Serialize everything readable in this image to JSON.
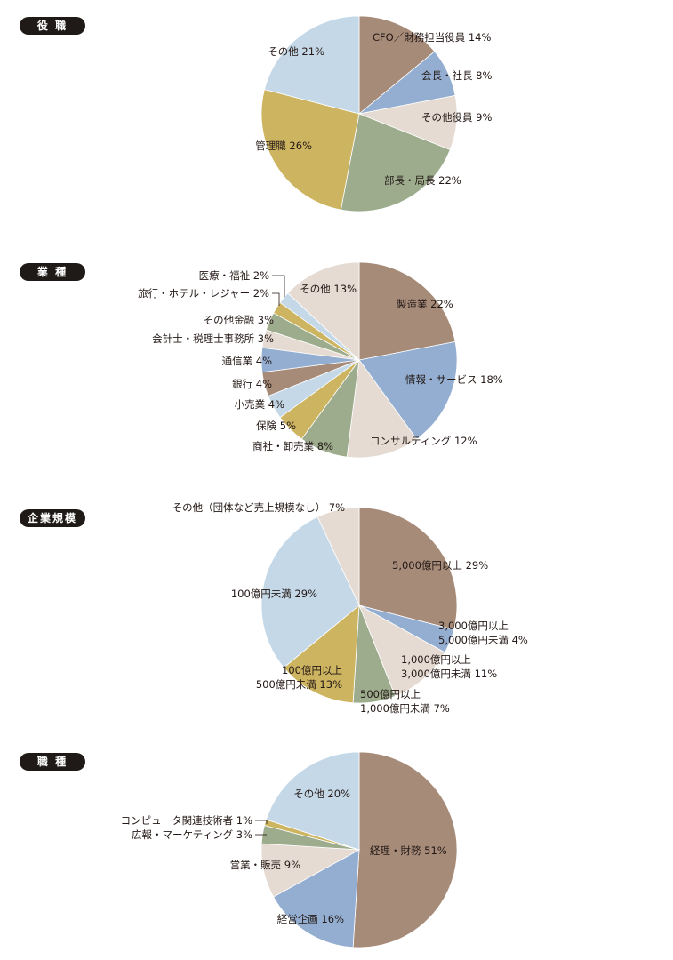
{
  "chart_data": [
    {
      "type": "pie",
      "title": "役 職",
      "slices": [
        {
          "label": "CFO／財務担当役員",
          "value": 14,
          "text": "CFO／財務担当役員 14%",
          "color": "#a68b79"
        },
        {
          "label": "会長・社長",
          "value": 8,
          "text": "会長・社長 8%",
          "color": "#93aed1"
        },
        {
          "label": "その他役員",
          "value": 9,
          "text": "その他役員 9%",
          "color": "#e5dbd3"
        },
        {
          "label": "部長・局長",
          "value": 22,
          "text": "部長・局長 22%",
          "color": "#9cac8d"
        },
        {
          "label": "管理職",
          "value": 26,
          "text": "管理職 26%",
          "color": "#cdb460"
        },
        {
          "label": "その他",
          "value": 21,
          "text": "その他 21%",
          "color": "#c4d8e8"
        }
      ]
    },
    {
      "type": "pie",
      "title": "業 種",
      "slices": [
        {
          "label": "製造業",
          "value": 22,
          "text": "製造業 22%",
          "color": "#a68b79"
        },
        {
          "label": "情報・サービス",
          "value": 18,
          "text": "情報・サービス 18%",
          "color": "#93aed1"
        },
        {
          "label": "コンサルティング",
          "value": 12,
          "text": "コンサルティング 12%",
          "color": "#e5dbd3"
        },
        {
          "label": "商社・卸売業",
          "value": 8,
          "text": "商社・卸売業 8%",
          "color": "#9cac8d"
        },
        {
          "label": "保険",
          "value": 5,
          "text": "保険 5%",
          "color": "#cdb460"
        },
        {
          "label": "小売業",
          "value": 4,
          "text": "小売業 4%",
          "color": "#c4d8e8"
        },
        {
          "label": "銀行",
          "value": 4,
          "text": "銀行 4%",
          "color": "#a68b79"
        },
        {
          "label": "通信業",
          "value": 4,
          "text": "通信業 4%",
          "color": "#93aed1"
        },
        {
          "label": "会計士・税理士事務所",
          "value": 3,
          "text": "会計士・税理士事務所 3%",
          "color": "#e5dbd3"
        },
        {
          "label": "その他金融",
          "value": 3,
          "text": "その他金融 3%",
          "color": "#9cac8d"
        },
        {
          "label": "旅行・ホテル・レジャー",
          "value": 2,
          "text": "旅行・ホテル・レジャー 2%",
          "color": "#cdb460"
        },
        {
          "label": "医療・福祉",
          "value": 2,
          "text": "医療・福祉 2%",
          "color": "#c4d8e8"
        },
        {
          "label": "その他",
          "value": 13,
          "text": "その他 13%",
          "color": "#e5dbd3"
        }
      ]
    },
    {
      "type": "pie",
      "title": "企業規模",
      "slices": [
        {
          "label": "5,000億円以上",
          "value": 29,
          "text": "5,000億円以上 29%",
          "color": "#a68b79"
        },
        {
          "label": "3,000億円以上 5,000億円未満",
          "value": 4,
          "text": "3,000億円以上|5,000億円未満 4%",
          "color": "#93aed1"
        },
        {
          "label": "1,000億円以上 3,000億円未満",
          "value": 11,
          "text": "1,000億円以上|3,000億円未満 11%",
          "color": "#e5dbd3"
        },
        {
          "label": "500億円以上 1,000億円未満",
          "value": 7,
          "text": "500億円以上|1,000億円未満 7%",
          "color": "#9cac8d"
        },
        {
          "label": "100億円以上 500億円未満",
          "value": 13,
          "text": "100億円以上|500億円未満 13%",
          "color": "#cdb460"
        },
        {
          "label": "100億円未満",
          "value": 29,
          "text": "100億円未満 29%",
          "color": "#c4d8e8"
        },
        {
          "label": "その他（団体など売上規模なし）",
          "value": 7,
          "text": "その他（団体など売上規模なし） 7%",
          "color": "#e5dbd3"
        }
      ]
    },
    {
      "type": "pie",
      "title": "職 種",
      "slices": [
        {
          "label": "経理・財務",
          "value": 51,
          "text": "経理・財務 51%",
          "color": "#a68b79"
        },
        {
          "label": "経営企画",
          "value": 16,
          "text": "経営企画 16%",
          "color": "#93aed1"
        },
        {
          "label": "営業・販売",
          "value": 9,
          "text": "営業・販売 9%",
          "color": "#e5dbd3"
        },
        {
          "label": "広報・マーケティング",
          "value": 3,
          "text": "広報・マーケティング 3%",
          "color": "#9cac8d"
        },
        {
          "label": "コンピュータ関連技術者",
          "value": 1,
          "text": "コンピュータ関連技術者 1%",
          "color": "#cdb460"
        },
        {
          "label": "その他",
          "value": 20,
          "text": "その他 20%",
          "color": "#c4d8e8"
        }
      ]
    }
  ]
}
